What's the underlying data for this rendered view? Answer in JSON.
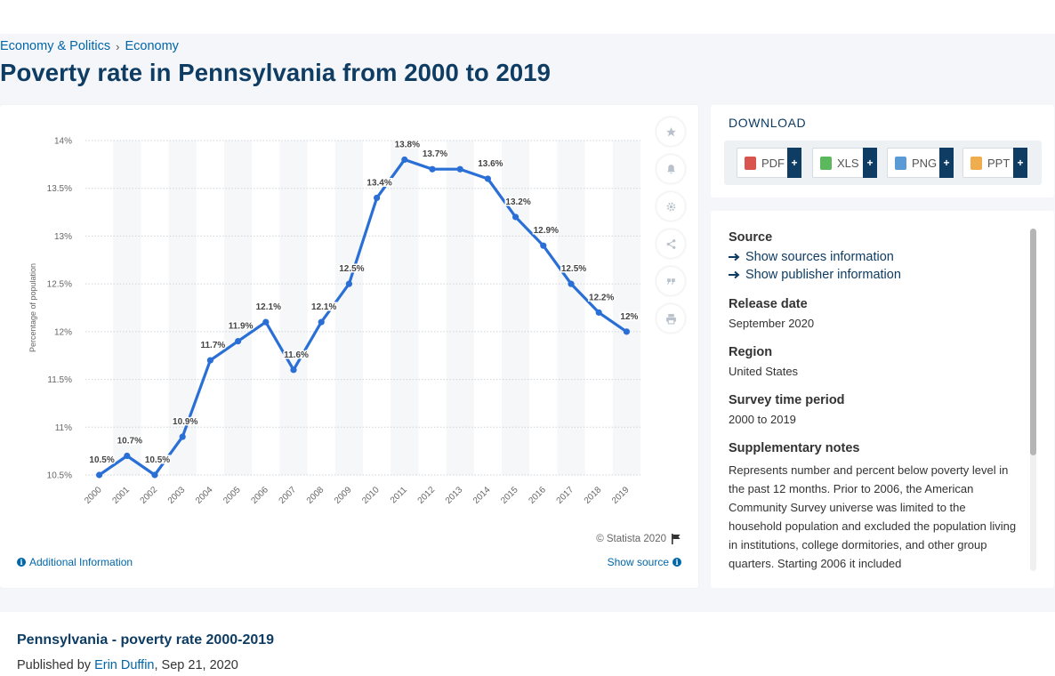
{
  "breadcrumb": {
    "item1": "Economy & Politics",
    "separator": "›",
    "item2": "Economy"
  },
  "page_title": "Poverty rate in Pennsylvania from 2000 to 2019",
  "chart_data": {
    "type": "line",
    "title": "",
    "xlabel": "",
    "ylabel": "Percentage of population",
    "ylim": [
      10.5,
      14
    ],
    "ytick_labels": [
      "10.5%",
      "11%",
      "11.5%",
      "12%",
      "12.5%",
      "13%",
      "13.5%",
      "14%"
    ],
    "categories": [
      "2000",
      "2001",
      "2002",
      "2003",
      "2004",
      "2005",
      "2006",
      "2007",
      "2008",
      "2009",
      "2010",
      "2011",
      "2012",
      "2013",
      "2014",
      "2015",
      "2016",
      "2017",
      "2018",
      "2019"
    ],
    "series": [
      {
        "name": "",
        "values": [
          10.5,
          10.7,
          10.5,
          10.9,
          11.7,
          11.9,
          12.1,
          11.6,
          12.1,
          12.5,
          13.4,
          13.8,
          13.7,
          13.7,
          13.6,
          13.2,
          12.9,
          12.5,
          12.2,
          12.0
        ]
      }
    ],
    "data_labels": [
      "10.5%",
      "10.7%",
      "10.5%",
      "10.9%",
      "11.7%",
      "11.9%",
      "12.1%",
      "11.6%",
      "12.1%",
      "12.5%",
      "13.4%",
      "13.8%",
      "13.7%",
      "",
      "13.6%",
      "13.2%",
      "12.9%",
      "12.5%",
      "12.2%",
      "12%"
    ],
    "line_color": "#2a6fd6",
    "grid": true
  },
  "chart_footer": {
    "copyright": "© Statista 2020",
    "additional_info": "Additional Information",
    "show_source": "Show source"
  },
  "side_tools": [
    "star-icon",
    "bell-icon",
    "gear-icon",
    "share-icon",
    "quote-icon",
    "print-icon"
  ],
  "download": {
    "title": "DOWNLOAD",
    "buttons": [
      {
        "label": "PDF",
        "color": "#d9534f"
      },
      {
        "label": "XLS",
        "color": "#5cb85c"
      },
      {
        "label": "PNG",
        "color": "#5b9bd5"
      },
      {
        "label": "PPT",
        "color": "#f0ad4e"
      }
    ],
    "plus": "+"
  },
  "details": {
    "source_heading": "Source",
    "source_link": "Show sources information",
    "publisher_link": "Show publisher information",
    "release_heading": "Release date",
    "release_value": "September 2020",
    "region_heading": "Region",
    "region_value": "United States",
    "period_heading": "Survey time period",
    "period_value": "2000 to 2019",
    "notes_heading": "Supplementary notes",
    "notes_text": "Represents number and percent below poverty level in the past 12 months. Prior to 2006, the American Community Survey universe was limited to the household population and excluded the population living in institutions, college dormitories, and other group quarters. Starting 2006 it included"
  },
  "bottom": {
    "title": "Pennsylvania - poverty rate 2000-2019",
    "published_prefix": "Published by",
    "author": "Erin Duffin",
    "date": ", Sep 21, 2020"
  }
}
